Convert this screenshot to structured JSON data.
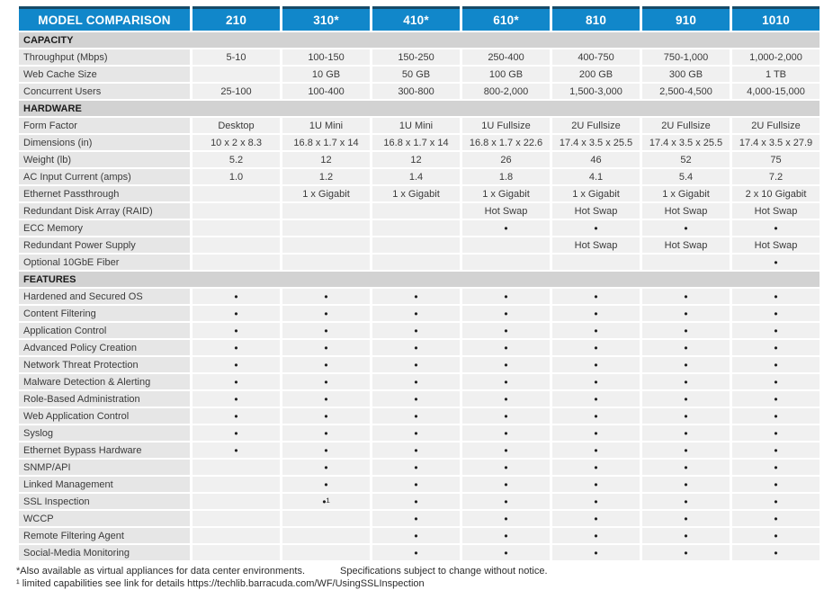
{
  "table": {
    "title": "MODEL COMPARISON",
    "columns": [
      "210",
      "310*",
      "410*",
      "610*",
      "810",
      "910",
      "1010"
    ],
    "sections": [
      {
        "name": "CAPACITY",
        "rows": [
          {
            "label": "Throughput (Mbps)",
            "cells": [
              "5-10",
              "100-150",
              "150-250",
              "250-400",
              "400-750",
              "750-1,000",
              "1,000-2,000"
            ]
          },
          {
            "label": "Web Cache Size",
            "cells": [
              "",
              "10 GB",
              "50 GB",
              "100 GB",
              "200 GB",
              "300 GB",
              "1 TB"
            ]
          },
          {
            "label": "Concurrent Users",
            "cells": [
              "25-100",
              "100-400",
              "300-800",
              "800-2,000",
              "1,500-3,000",
              "2,500-4,500",
              "4,000-15,000"
            ]
          }
        ]
      },
      {
        "name": "HARDWARE",
        "rows": [
          {
            "label": "Form Factor",
            "cells": [
              "Desktop",
              "1U Mini",
              "1U Mini",
              "1U Fullsize",
              "2U Fullsize",
              "2U Fullsize",
              "2U Fullsize"
            ]
          },
          {
            "label": "Dimensions (in)",
            "cells": [
              "10 x 2 x 8.3",
              "16.8 x 1.7 x 14",
              "16.8 x 1.7 x 14",
              "16.8 x 1.7 x 22.6",
              "17.4 x 3.5 x 25.5",
              "17.4 x 3.5 x 25.5",
              "17.4 x 3.5 x 27.9"
            ]
          },
          {
            "label": "Weight (lb)",
            "cells": [
              "5.2",
              "12",
              "12",
              "26",
              "46",
              "52",
              "75"
            ]
          },
          {
            "label": "AC Input Current (amps)",
            "cells": [
              "1.0",
              "1.2",
              "1.4",
              "1.8",
              "4.1",
              "5.4",
              "7.2"
            ]
          },
          {
            "label": "Ethernet Passthrough",
            "cells": [
              "",
              "1 x Gigabit",
              "1 x Gigabit",
              "1 x Gigabit",
              "1 x Gigabit",
              "1 x Gigabit",
              "2 x 10 Gigabit"
            ]
          },
          {
            "label": "Redundant Disk Array (RAID)",
            "cells": [
              "",
              "",
              "",
              "Hot Swap",
              "Hot Swap",
              "Hot Swap",
              "Hot Swap"
            ]
          },
          {
            "label": "ECC Memory",
            "cells": [
              "",
              "",
              "",
              "•",
              "•",
              "•",
              "•"
            ]
          },
          {
            "label": "Redundant Power Supply",
            "cells": [
              "",
              "",
              "",
              "",
              "Hot Swap",
              "Hot Swap",
              "Hot Swap"
            ]
          },
          {
            "label": "Optional 10GbE Fiber",
            "cells": [
              "",
              "",
              "",
              "",
              "",
              "",
              "•"
            ]
          }
        ]
      },
      {
        "name": "FEATURES",
        "rows": [
          {
            "label": "Hardened and Secured OS",
            "cells": [
              "•",
              "•",
              "•",
              "•",
              "•",
              "•",
              "•"
            ]
          },
          {
            "label": "Content Filtering",
            "cells": [
              "•",
              "•",
              "•",
              "•",
              "•",
              "•",
              "•"
            ]
          },
          {
            "label": "Application Control",
            "cells": [
              "•",
              "•",
              "•",
              "•",
              "•",
              "•",
              "•"
            ]
          },
          {
            "label": "Advanced Policy Creation",
            "cells": [
              "•",
              "•",
              "•",
              "•",
              "•",
              "•",
              "•"
            ]
          },
          {
            "label": "Network Threat Protection",
            "cells": [
              "•",
              "•",
              "•",
              "•",
              "•",
              "•",
              "•"
            ]
          },
          {
            "label": "Malware Detection & Alerting",
            "cells": [
              "•",
              "•",
              "•",
              "•",
              "•",
              "•",
              "•"
            ]
          },
          {
            "label": "Role-Based Administration",
            "cells": [
              "•",
              "•",
              "•",
              "•",
              "•",
              "•",
              "•"
            ]
          },
          {
            "label": "Web Application Control",
            "cells": [
              "•",
              "•",
              "•",
              "•",
              "•",
              "•",
              "•"
            ]
          },
          {
            "label": "Syslog",
            "cells": [
              "•",
              "•",
              "•",
              "•",
              "•",
              "•",
              "•"
            ]
          },
          {
            "label": "Ethernet Bypass Hardware",
            "cells": [
              "•",
              "•",
              "•",
              "•",
              "•",
              "•",
              "•"
            ]
          },
          {
            "label": "SNMP/API",
            "cells": [
              "",
              "•",
              "•",
              "•",
              "•",
              "•",
              "•"
            ]
          },
          {
            "label": "Linked Management",
            "cells": [
              "",
              "•",
              "•",
              "•",
              "•",
              "•",
              "•"
            ]
          },
          {
            "label": "SSL Inspection",
            "cells": [
              "",
              "•¹",
              "•",
              "•",
              "•",
              "•",
              "•"
            ]
          },
          {
            "label": "WCCP",
            "cells": [
              "",
              "",
              "•",
              "•",
              "•",
              "•",
              "•"
            ]
          },
          {
            "label": "Remote Filtering Agent",
            "cells": [
              "",
              "",
              "•",
              "•",
              "•",
              "•",
              "•"
            ]
          },
          {
            "label": "Social-Media Monitoring",
            "cells": [
              "",
              "",
              "•",
              "•",
              "•",
              "•",
              "•"
            ]
          }
        ]
      }
    ]
  },
  "footnotes": {
    "virtual_appliances": "*Also available as virtual appliances for data center environments.",
    "specifications": "Specifications subject to change without notice.",
    "ssl_link": "¹ limited capabilities see link for details https://techlib.barracuda.com/WF/UsingSSLInspection"
  },
  "colors": {
    "header_blue": "#1187ca",
    "header_top_border": "#164a67",
    "section_gray": "#d2d2d2",
    "label_gray": "#e6e6e6",
    "value_gray": "#f0f0f0"
  }
}
